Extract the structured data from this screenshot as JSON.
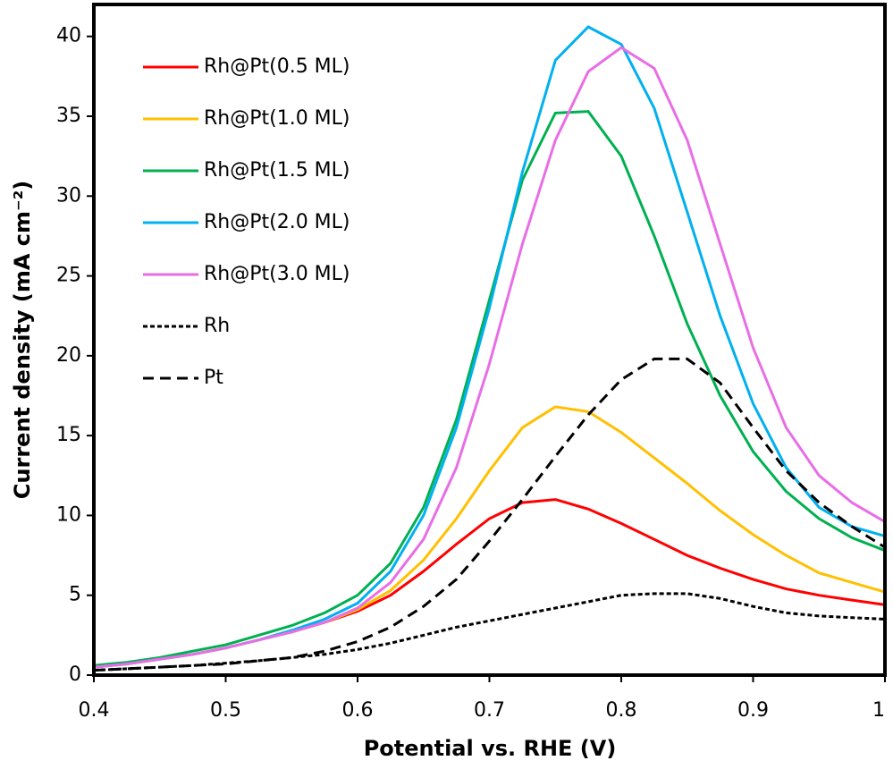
{
  "chart_data": {
    "type": "line",
    "xlabel": "Potential vs. RHE (V)",
    "ylabel": "Current density  (mA cm⁻²)",
    "x": [
      0.4,
      0.425,
      0.45,
      0.475,
      0.5,
      0.525,
      0.55,
      0.575,
      0.6,
      0.625,
      0.65,
      0.675,
      0.7,
      0.725,
      0.75,
      0.775,
      0.8,
      0.825,
      0.85,
      0.875,
      0.9,
      0.925,
      0.95,
      0.975,
      1.0
    ],
    "xlim": [
      0.4,
      1.0
    ],
    "xticks": [
      0.4,
      0.5,
      0.6,
      0.7,
      0.8,
      0.9,
      1
    ],
    "ylim": [
      0,
      42
    ],
    "yticks": [
      0,
      5,
      10,
      15,
      20,
      25,
      30,
      35,
      40
    ],
    "legend": "upper left",
    "series": [
      {
        "name": "Rh@Pt(0.5 ML)",
        "color": "#ff0000",
        "style": "solid",
        "values": [
          0.5,
          0.7,
          1.0,
          1.3,
          1.7,
          2.2,
          2.7,
          3.3,
          4.0,
          5.0,
          6.5,
          8.2,
          9.8,
          10.8,
          11.0,
          10.4,
          9.5,
          8.5,
          7.5,
          6.7,
          6.0,
          5.4,
          5.0,
          4.7,
          4.4
        ]
      },
      {
        "name": "Rh@Pt(1.0 ML)",
        "color": "#ffc000",
        "style": "solid",
        "values": [
          0.5,
          0.7,
          1.0,
          1.3,
          1.7,
          2.2,
          2.7,
          3.3,
          4.1,
          5.3,
          7.2,
          9.8,
          12.8,
          15.5,
          16.8,
          16.5,
          15.2,
          13.6,
          12.0,
          10.3,
          8.8,
          7.5,
          6.4,
          5.8,
          5.2
        ]
      },
      {
        "name": "Rh@Pt(1.5 ML)",
        "color": "#00b050",
        "style": "solid",
        "values": [
          0.6,
          0.8,
          1.1,
          1.5,
          1.9,
          2.5,
          3.1,
          3.9,
          5.0,
          7.0,
          10.5,
          16.0,
          23.5,
          31.0,
          35.2,
          35.3,
          32.5,
          27.5,
          22.0,
          17.5,
          14.0,
          11.5,
          9.8,
          8.6,
          7.8
        ]
      },
      {
        "name": "Rh@Pt(2.0 ML)",
        "color": "#00b0f0",
        "style": "solid",
        "values": [
          0.5,
          0.7,
          1.0,
          1.3,
          1.7,
          2.2,
          2.8,
          3.5,
          4.5,
          6.5,
          10.0,
          15.5,
          23.0,
          31.5,
          38.5,
          40.6,
          39.5,
          35.5,
          29.0,
          22.5,
          17.0,
          13.0,
          10.5,
          9.3,
          8.7
        ]
      },
      {
        "name": "Rh@Pt(3.0 ML)",
        "color": "#e86ee6",
        "style": "solid",
        "values": [
          0.5,
          0.7,
          1.0,
          1.3,
          1.7,
          2.2,
          2.7,
          3.3,
          4.2,
          5.8,
          8.5,
          13.0,
          19.5,
          27.0,
          33.5,
          37.8,
          39.3,
          38.0,
          33.5,
          27.0,
          20.5,
          15.5,
          12.5,
          10.8,
          9.6
        ]
      },
      {
        "name": "Rh",
        "color": "#000000",
        "style": "dotted",
        "values": [
          0.3,
          0.4,
          0.5,
          0.6,
          0.75,
          0.9,
          1.1,
          1.3,
          1.6,
          2.0,
          2.5,
          3.0,
          3.4,
          3.8,
          4.2,
          4.6,
          5.0,
          5.1,
          5.1,
          4.8,
          4.3,
          3.9,
          3.7,
          3.6,
          3.5
        ]
      },
      {
        "name": "Pt",
        "color": "#000000",
        "style": "dashed",
        "values": [
          0.3,
          0.4,
          0.5,
          0.6,
          0.7,
          0.9,
          1.1,
          1.5,
          2.1,
          3.0,
          4.3,
          6.0,
          8.4,
          11.0,
          13.7,
          16.3,
          18.5,
          19.8,
          19.8,
          18.3,
          15.5,
          12.8,
          10.8,
          9.3,
          8.0
        ]
      }
    ]
  }
}
